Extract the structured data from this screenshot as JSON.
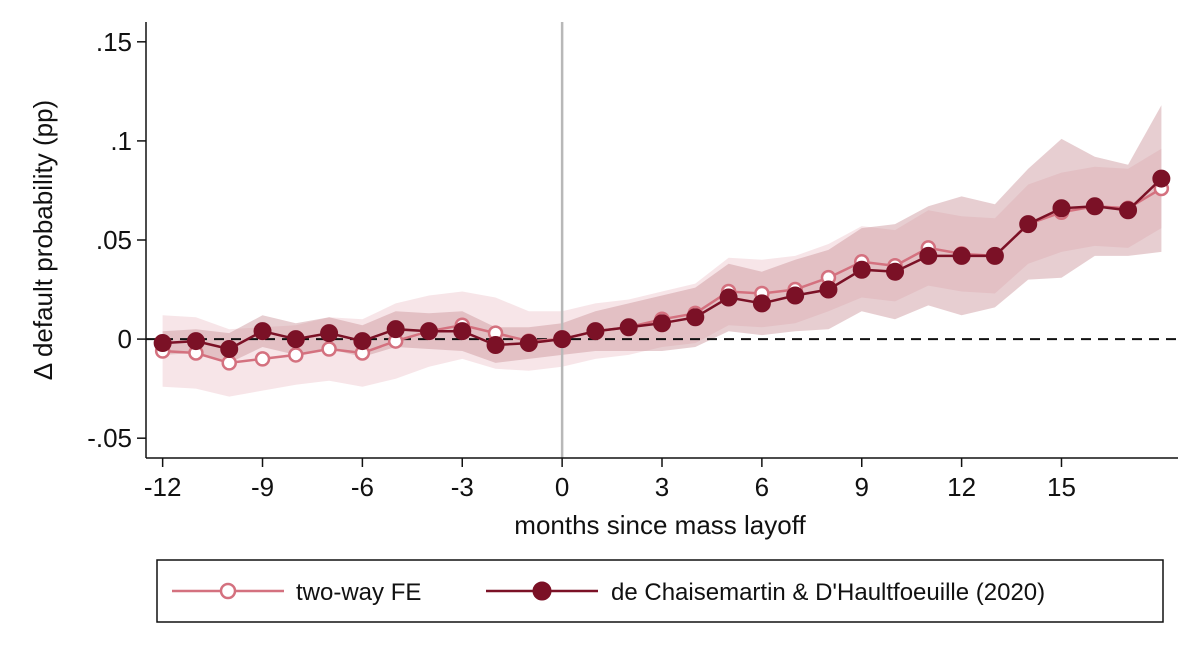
{
  "chart_data": {
    "type": "line",
    "xlabel": "months since mass layoff",
    "ylabel": "Δ default probability (pp)",
    "xlim": [
      -12.5,
      18.5
    ],
    "ylim": [
      -0.06,
      0.16
    ],
    "xticks": [
      -12,
      -9,
      -6,
      -3,
      0,
      3,
      6,
      9,
      12,
      15
    ],
    "xtick_labels": [
      "-12",
      "-9",
      "-6",
      "-3",
      "0",
      "3",
      "6",
      "9",
      "12",
      "15"
    ],
    "yticks": [
      0.15,
      0.1,
      0.05,
      0,
      -0.05
    ],
    "ytick_labels": [
      ".15",
      ".1",
      ".05",
      "0",
      "-.05"
    ],
    "reference_lines": {
      "vertical_x": 0,
      "horizontal_y": 0
    },
    "x": [
      -12,
      -11,
      -10,
      -9,
      -8,
      -7,
      -6,
      -5,
      -4,
      -3,
      -2,
      -1,
      0,
      1,
      2,
      3,
      4,
      5,
      6,
      7,
      8,
      9,
      10,
      11,
      12,
      13,
      14,
      15,
      16,
      17,
      18
    ],
    "series": [
      {
        "name": "two-way FE",
        "color": "#d4717f",
        "ci_color": "#e8b4bc",
        "marker": "hollow-circle",
        "values": [
          -0.006,
          -0.007,
          -0.012,
          -0.01,
          -0.008,
          -0.005,
          -0.007,
          -0.001,
          0.004,
          0.007,
          0.003,
          -0.001,
          0.0,
          0.004,
          0.006,
          0.01,
          0.013,
          0.024,
          0.023,
          0.025,
          0.031,
          0.039,
          0.037,
          0.046,
          0.043,
          0.042,
          0.058,
          0.064,
          0.067,
          0.066,
          0.076
        ],
        "ci_low": [
          -0.024,
          -0.025,
          -0.029,
          -0.026,
          -0.023,
          -0.021,
          -0.024,
          -0.02,
          -0.014,
          -0.01,
          -0.015,
          -0.016,
          -0.014,
          -0.01,
          -0.008,
          -0.004,
          -0.002,
          0.007,
          0.006,
          0.008,
          0.014,
          0.021,
          0.019,
          0.027,
          0.024,
          0.023,
          0.038,
          0.044,
          0.047,
          0.046,
          0.056
        ],
        "ci_high": [
          0.012,
          0.011,
          0.005,
          0.006,
          0.007,
          0.011,
          0.01,
          0.018,
          0.022,
          0.024,
          0.021,
          0.014,
          0.014,
          0.018,
          0.02,
          0.024,
          0.028,
          0.041,
          0.04,
          0.042,
          0.048,
          0.057,
          0.055,
          0.065,
          0.062,
          0.061,
          0.078,
          0.084,
          0.087,
          0.086,
          0.096
        ]
      },
      {
        "name": "de Chaisemartin & D'Haultfoeuille (2020)",
        "color": "#7b1126",
        "ci_color": "#c9929a",
        "marker": "filled-circle",
        "values": [
          -0.002,
          -0.001,
          -0.005,
          0.004,
          0.0,
          0.003,
          -0.001,
          0.005,
          0.004,
          0.004,
          -0.003,
          -0.002,
          0.0,
          0.004,
          0.006,
          0.008,
          0.011,
          0.021,
          0.018,
          0.022,
          0.025,
          0.035,
          0.034,
          0.042,
          0.042,
          0.042,
          0.058,
          0.066,
          0.067,
          0.065,
          0.081
        ],
        "ci_low": [
          -0.008,
          -0.007,
          -0.012,
          -0.004,
          -0.008,
          -0.005,
          -0.009,
          -0.004,
          -0.005,
          -0.006,
          -0.012,
          -0.01,
          -0.008,
          -0.006,
          -0.006,
          -0.006,
          -0.004,
          0.004,
          0.002,
          0.004,
          0.005,
          0.014,
          0.01,
          0.017,
          0.012,
          0.016,
          0.03,
          0.031,
          0.042,
          0.042,
          0.044
        ],
        "ci_high": [
          0.004,
          0.005,
          0.003,
          0.012,
          0.008,
          0.011,
          0.007,
          0.014,
          0.013,
          0.014,
          0.006,
          0.006,
          0.008,
          0.014,
          0.018,
          0.022,
          0.026,
          0.038,
          0.034,
          0.04,
          0.045,
          0.056,
          0.058,
          0.067,
          0.072,
          0.068,
          0.086,
          0.101,
          0.092,
          0.088,
          0.118
        ]
      }
    ],
    "legend": {
      "position": "bottom",
      "labels": [
        "two-way FE",
        "de Chaisemartin & D'Haultfoeuille (2020)"
      ]
    }
  }
}
